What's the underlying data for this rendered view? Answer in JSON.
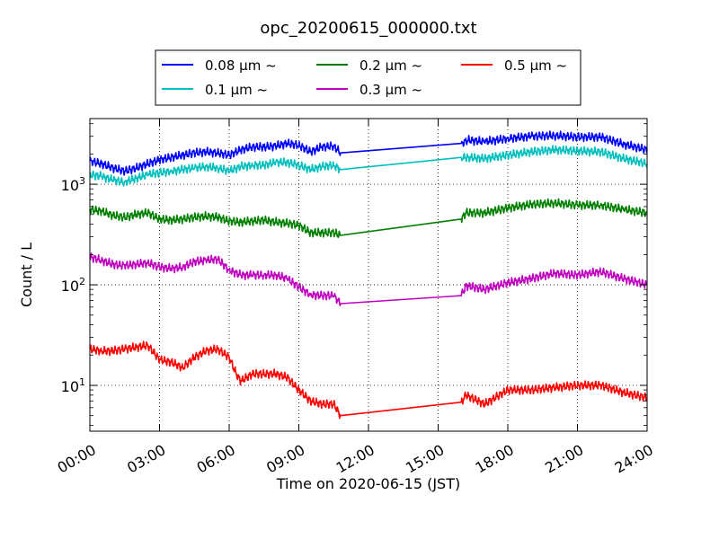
{
  "chart_data": {
    "type": "line",
    "title": "opc_20200615_000000.txt",
    "xlabel": "Time on 2020-06-15 (JST)",
    "ylabel": "Count / L",
    "x_unit": "hours",
    "xlim": [
      0,
      24
    ],
    "ylim": [
      3.5,
      4500
    ],
    "yscale": "log",
    "grid": true,
    "legend_position": "top-center",
    "x_ticks": [
      0,
      3,
      6,
      9,
      12,
      15,
      18,
      21,
      24
    ],
    "x_tick_labels": [
      "00:00",
      "03:00",
      "06:00",
      "09:00",
      "12:00",
      "15:00",
      "18:00",
      "21:00",
      "24:00"
    ],
    "y_ticks": [
      10,
      100,
      1000
    ],
    "y_tick_labels": [
      {
        "base": "10",
        "exp": "1"
      },
      {
        "base": "10",
        "exp": "2"
      },
      {
        "base": "10",
        "exp": "3"
      }
    ],
    "series": [
      {
        "name": "0.08 μm ~",
        "color": "#0000ff",
        "x": [
          0,
          0.5,
          1,
          1.5,
          2,
          2.5,
          3,
          3.5,
          4,
          4.5,
          5,
          5.5,
          6,
          6.5,
          7,
          7.5,
          8,
          8.5,
          9,
          9.5,
          10,
          10.5,
          10.8,
          16,
          16.3,
          17,
          18,
          19,
          20,
          21,
          22,
          23,
          24
        ],
        "y": [
          1700,
          1600,
          1450,
          1350,
          1450,
          1600,
          1750,
          1850,
          1950,
          2050,
          2100,
          2050,
          1950,
          2200,
          2350,
          2350,
          2400,
          2550,
          2450,
          2100,
          2350,
          2400,
          2050,
          2550,
          2750,
          2650,
          2850,
          3000,
          3050,
          2950,
          2950,
          2500,
          2200
        ]
      },
      {
        "name": "0.1 μm ~",
        "color": "#00bfbf",
        "x": [
          0,
          0.5,
          1,
          1.5,
          2,
          2.5,
          3,
          3.5,
          4,
          4.5,
          5,
          5.5,
          6,
          6.5,
          7,
          7.5,
          8,
          8.5,
          9,
          9.5,
          10,
          10.5,
          10.8,
          16,
          16.3,
          17,
          18,
          19,
          20,
          21,
          22,
          23,
          24
        ],
        "y": [
          1250,
          1200,
          1100,
          1050,
          1150,
          1250,
          1300,
          1350,
          1400,
          1450,
          1500,
          1450,
          1350,
          1500,
          1550,
          1550,
          1650,
          1650,
          1550,
          1400,
          1500,
          1550,
          1400,
          1850,
          1850,
          1800,
          1950,
          2100,
          2200,
          2150,
          2100,
          1800,
          1600
        ]
      },
      {
        "name": "0.2 μm ~",
        "color": "#008000",
        "x": [
          0,
          0.5,
          1,
          1.5,
          2,
          2.5,
          3,
          3.5,
          4,
          4.5,
          5,
          5.5,
          6,
          6.5,
          7,
          7.5,
          8,
          8.5,
          9,
          9.5,
          10,
          10.5,
          10.8,
          16,
          16.2,
          17,
          18,
          19,
          20,
          21,
          22,
          23,
          24
        ],
        "y": [
          560,
          540,
          490,
          470,
          500,
          520,
          450,
          440,
          450,
          470,
          480,
          470,
          430,
          420,
          430,
          440,
          420,
          410,
          390,
          330,
          330,
          330,
          310,
          450,
          520,
          520,
          580,
          630,
          650,
          620,
          620,
          560,
          520
        ]
      },
      {
        "name": "0.3 μm ~",
        "color": "#bf00bf",
        "x": [
          0,
          0.5,
          1,
          1.5,
          2,
          2.5,
          3,
          3.5,
          4,
          4.5,
          5,
          5.5,
          6,
          6.5,
          7,
          7.5,
          8,
          8.5,
          9,
          9.5,
          10,
          10.5,
          10.8,
          16,
          16.2,
          17,
          18,
          19,
          20,
          21,
          22,
          23,
          24
        ],
        "y": [
          190,
          175,
          160,
          155,
          160,
          165,
          150,
          145,
          150,
          170,
          175,
          180,
          140,
          125,
          125,
          125,
          125,
          115,
          95,
          80,
          78,
          78,
          65,
          78,
          98,
          90,
          105,
          115,
          130,
          125,
          135,
          115,
          100
        ]
      },
      {
        "name": "0.5 μm ~",
        "color": "#ff0000",
        "x": [
          0,
          0.5,
          1,
          1.5,
          2,
          2.5,
          3,
          3.5,
          4,
          4.5,
          5,
          5.5,
          6,
          6.3,
          6.5,
          7,
          7.5,
          8,
          8.5,
          9,
          9.5,
          10,
          10.5,
          10.8,
          16,
          16.2,
          17,
          18,
          19,
          20,
          21,
          22,
          23,
          24
        ],
        "y": [
          23,
          22,
          22,
          23,
          24,
          25,
          18,
          17,
          15,
          19,
          22,
          23,
          19,
          13,
          11,
          13,
          13,
          13,
          12,
          9,
          7,
          6.5,
          6.5,
          5,
          6.8,
          8,
          6.5,
          9,
          9,
          9.5,
          10,
          10,
          8.5,
          7.5
        ]
      }
    ]
  }
}
